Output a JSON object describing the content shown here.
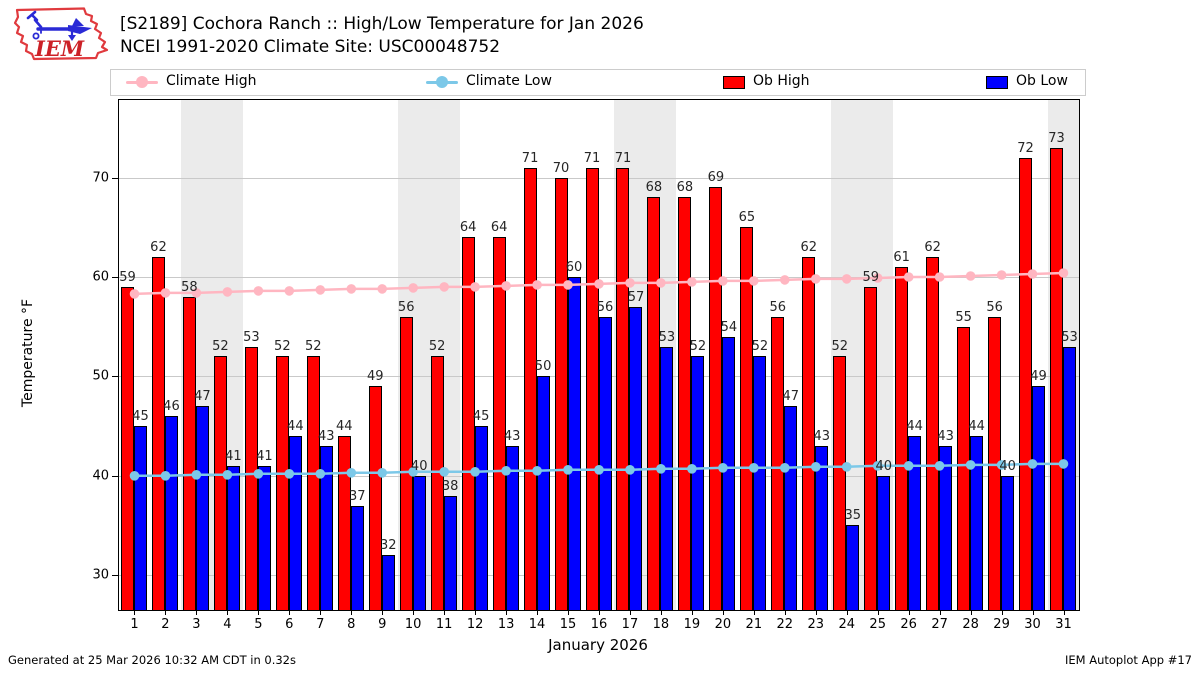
{
  "header": {
    "title_line1": "[S2189] Cochora Ranch :: High/Low Temperature for Jan 2026",
    "title_line2": "NCEI 1991-2020 Climate Site: USC00048752",
    "logo_text": "IEM"
  },
  "legend": {
    "items": [
      {
        "label": "Climate High",
        "type": "line",
        "color": "#ffb6c1"
      },
      {
        "label": "Climate Low",
        "type": "line",
        "color": "#7cc8e8"
      },
      {
        "label": "Ob High",
        "type": "bar",
        "color": "#ff0000"
      },
      {
        "label": "Ob Low",
        "type": "bar",
        "color": "#0000ff"
      }
    ]
  },
  "footer": {
    "left": "Generated at 25 Mar 2026 10:32 AM CDT in 0.32s",
    "right": "IEM Autoplot App #17"
  },
  "chart_data": {
    "type": "bar",
    "title": "[S2189] Cochora Ranch :: High/Low Temperature for Jan 2026",
    "subtitle": "NCEI 1991-2020 Climate Site: USC00048752",
    "xlabel": "January 2026",
    "ylabel": "Temperature °F",
    "x": [
      1,
      2,
      3,
      4,
      5,
      6,
      7,
      8,
      9,
      10,
      11,
      12,
      13,
      14,
      15,
      16,
      17,
      18,
      19,
      20,
      21,
      22,
      23,
      24,
      25,
      26,
      27,
      28,
      29,
      30,
      31
    ],
    "yticks": [
      30,
      40,
      50,
      60,
      70
    ],
    "ylim": [
      26.5,
      77.8
    ],
    "grid": true,
    "legend_position": "top",
    "weekend_days": [
      3,
      4,
      10,
      11,
      17,
      18,
      24,
      25,
      31
    ],
    "weekend_band_color": "#ebebeb",
    "series": [
      {
        "name": "Ob High",
        "type": "bar",
        "color": "#ff0000",
        "values": [
          59,
          62,
          58,
          52,
          53,
          52,
          52,
          44,
          49,
          56,
          52,
          64,
          64,
          71,
          70,
          71,
          71,
          68,
          68,
          69,
          65,
          56,
          62,
          52,
          59,
          61,
          62,
          55,
          56,
          72,
          73
        ]
      },
      {
        "name": "Ob Low",
        "type": "bar",
        "color": "#0000ff",
        "values": [
          45,
          46,
          47,
          41,
          41,
          44,
          43,
          37,
          32,
          40,
          38,
          45,
          43,
          50,
          60,
          56,
          57,
          53,
          52,
          54,
          52,
          47,
          43,
          35,
          40,
          44,
          43,
          44,
          40,
          49,
          53
        ]
      },
      {
        "name": "Climate High",
        "type": "line",
        "color": "#ffb6c1",
        "values": [
          58.3,
          58.4,
          58.4,
          58.5,
          58.6,
          58.6,
          58.7,
          58.8,
          58.8,
          58.9,
          59.0,
          59.0,
          59.1,
          59.2,
          59.2,
          59.3,
          59.4,
          59.4,
          59.5,
          59.6,
          59.6,
          59.7,
          59.8,
          59.8,
          59.9,
          60.0,
          60.0,
          60.1,
          60.2,
          60.3,
          60.4
        ]
      },
      {
        "name": "Climate Low",
        "type": "line",
        "color": "#7cc8e8",
        "values": [
          40.0,
          40.0,
          40.1,
          40.1,
          40.2,
          40.2,
          40.2,
          40.3,
          40.3,
          40.4,
          40.4,
          40.4,
          40.5,
          40.5,
          40.6,
          40.6,
          40.6,
          40.7,
          40.7,
          40.8,
          40.8,
          40.8,
          40.9,
          40.9,
          41.0,
          41.0,
          41.0,
          41.1,
          41.1,
          41.2,
          41.2
        ]
      }
    ]
  }
}
